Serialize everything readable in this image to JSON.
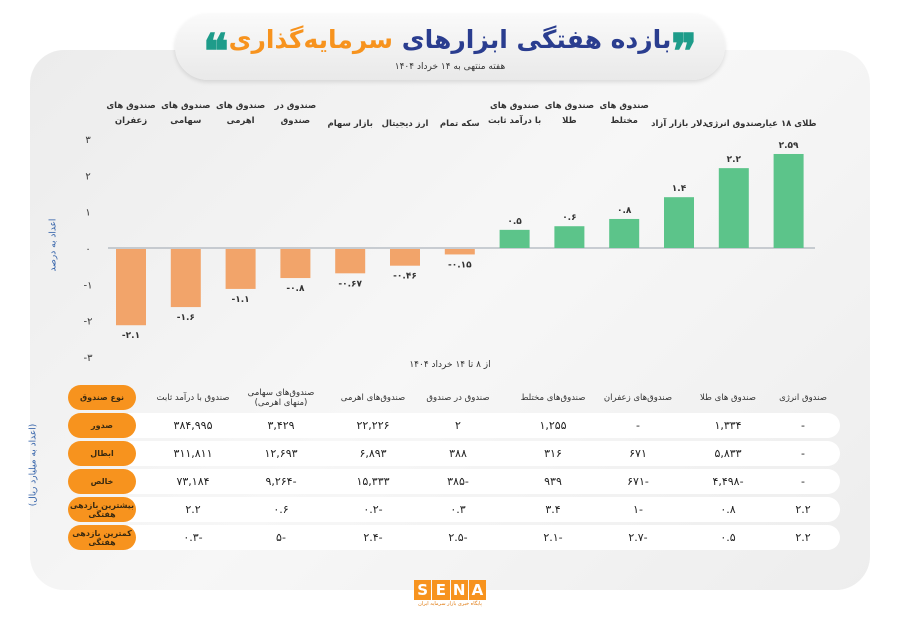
{
  "header": {
    "title_part1": "بازده هفتگی ابزارهای",
    "title_part2": "سرمایه‌گذاری",
    "subtitle": "هفته منتهی به ۱۴ خرداد ۱۴۰۴",
    "quote_left": "❝",
    "quote_right": "❞"
  },
  "chart_data": {
    "type": "bar",
    "categories": [
      "صندوق های زعفران",
      "صندوق های سهامی",
      "صندوق های اهرمی",
      "صندوق در صندوق",
      "بازار سهام",
      "ارز دیجیتال",
      "سکه تمام",
      "صندوق های با درآمد ثابت",
      "صندوق های طلا",
      "صندوق های مختلط",
      "دلار بازار آزاد",
      "صندوق انرژی",
      "طلای ۱۸ عیار"
    ],
    "values": [
      -2.1,
      -1.6,
      -1.1,
      -0.8,
      -0.67,
      -0.46,
      -0.15,
      0.5,
      0.6,
      0.8,
      1.4,
      2.2,
      2.59
    ],
    "value_labels": [
      "-۲.۱",
      "-۱.۶",
      "-۱.۱",
      "-۰.۸",
      "-۰.۶۷",
      "-۰.۴۶",
      "-۰.۱۵",
      "۰.۵",
      "۰.۶",
      "۰.۸",
      "۱.۴",
      "۲.۲",
      "۲.۵۹"
    ],
    "ylabel": "اعداد به درصد",
    "xlabel": "از ۸ تا ۱۴ خرداد ۱۴۰۴",
    "ylim": [
      -3,
      3
    ],
    "yticks": [
      3,
      2,
      1,
      0,
      -1,
      -2,
      -3
    ],
    "ytick_labels": [
      "۳",
      "۲",
      "۱",
      "۰",
      "-۱",
      "-۲",
      "-۳"
    ],
    "colors": {
      "negative": "#f2a46a",
      "positive": "#5cc48a",
      "axis": "#9aa3ad"
    },
    "grid": false
  },
  "table": {
    "unit": "(اعداد به میلیارد ریال)",
    "corner": "نوع صندوق",
    "columns": [
      "صندوق با درآمد ثابت",
      "صندوق‌های سهامی (منهای اهرمی)",
      "صندوق‌های اهرمی",
      "صندوق در صندوق",
      "صندوق‌های مختلط",
      "صندوق‌های زعفران",
      "صندوق های طلا",
      "صندوق انرژی"
    ],
    "rows": [
      {
        "label": "صدور",
        "cells": [
          "۳۸۴,۹۹۵",
          "۳,۴۲۹",
          "۲۲,۲۲۶",
          "۲",
          "۱,۲۵۵",
          "-",
          "۱,۳۳۴",
          "-"
        ]
      },
      {
        "label": "ابطال",
        "cells": [
          "۳۱۱,۸۱۱",
          "۱۲,۶۹۳",
          "۶,۸۹۳",
          "۳۸۸",
          "۳۱۶",
          "۶۷۱",
          "۵,۸۳۳",
          "-"
        ]
      },
      {
        "label": "خالص",
        "cells": [
          "۷۳,۱۸۴",
          "-۹,۲۶۴",
          "۱۵,۳۳۳",
          "-۳۸۵",
          "۹۳۹",
          "-۶۷۱",
          "-۴,۴۹۸",
          "-"
        ]
      },
      {
        "label": "بیشترین بازدهی هفتگی",
        "cells": [
          "۲.۲",
          "۰.۶",
          "-۰.۲",
          "۰.۳",
          "۳.۴",
          "-۱",
          "۰.۸",
          "۲.۲"
        ]
      },
      {
        "label": "کمترین بازدهی هفتگی",
        "cells": [
          "-۰.۳",
          "-۵",
          "-۲.۴",
          "-۲.۵",
          "-۲.۱",
          "-۲.۷",
          "۰.۵",
          "۲.۲"
        ]
      }
    ]
  },
  "footer": {
    "logo_letters": [
      "S",
      "E",
      "N",
      "A"
    ],
    "logo_tagline": "پایگاه خبری بازار سرمایه ایران"
  }
}
